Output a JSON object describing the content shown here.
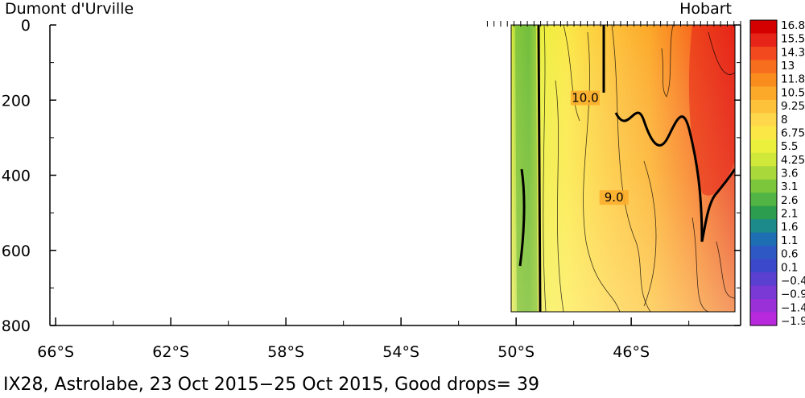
{
  "chart_data": {
    "type": "heatmap",
    "title": "IX28, Astrolabe, 23 Oct 2015−25 Oct 2015, Good drops= 39",
    "left_label": "Dumont d'Urville",
    "right_label": "Hobart",
    "x_ticks": [
      "66°S",
      "62°S",
      "58°S",
      "54°S",
      "50°S",
      "46°S"
    ],
    "x_tick_values": [
      -66,
      -62,
      -58,
      -54,
      -50,
      -46
    ],
    "xlim": [
      -66.2,
      -42.2
    ],
    "y_ticks": [
      "0",
      "200",
      "400",
      "600",
      "800"
    ],
    "y_tick_values": [
      0,
      200,
      400,
      600,
      800
    ],
    "ylim": [
      800,
      0
    ],
    "data_extent": {
      "lat_start": -51.0,
      "lat_end": -42.2,
      "depth_max": 760
    },
    "contour_labels": [
      {
        "text": "10.0",
        "lat": -47.6,
        "depth": 205
      },
      {
        "text": "9.0",
        "lat": -46.6,
        "depth": 470
      }
    ],
    "colorbar": {
      "labels": [
        "16.8",
        "15.5",
        "14.3",
        "13",
        "11.8",
        "10.5",
        "9.25",
        "8",
        "6.75",
        "5.5",
        "4.25",
        "3.6",
        "3.1",
        "2.6",
        "2.1",
        "1.6",
        "1.1",
        "0.6",
        "0.1",
        "−0.4",
        "−0.9",
        "−1.4",
        "−1.9"
      ],
      "colors": [
        "#d40000",
        "#e62418",
        "#f24a1e",
        "#f76e1e",
        "#fa8c1e",
        "#fca828",
        "#fdc23a",
        "#fed84a",
        "#fbe846",
        "#eaf03c",
        "#cfe83a",
        "#a8d83a",
        "#7cc63c",
        "#52b444",
        "#2c9c4e",
        "#1c8a8a",
        "#1e6eb4",
        "#2e58c4",
        "#3c48cc",
        "#5a40d0",
        "#7a38d4",
        "#9a30d8",
        "#b828dc"
      ]
    }
  }
}
